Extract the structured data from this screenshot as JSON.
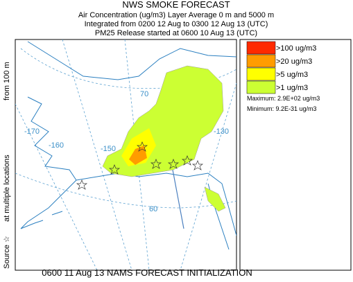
{
  "header": {
    "title": "NWS SMOKE FORECAST",
    "lines": [
      "Air Concentration (ug/m3) Layer Average    0 m and  5000 m",
      "Integrated from 0200 12 Aug to 0300 12 Aug 13 (UTC)",
      "PM25 Release started at 0600 10 Aug 13 (UTC)"
    ]
  },
  "side_label": {
    "source": "Source ☆",
    "locations": "at multiple locations",
    "height": "from   100 m"
  },
  "legend": {
    "items": [
      {
        "label": ">100 ug/m3",
        "color": "#ff2a00"
      },
      {
        "label": ">20 ug/m3",
        "color": "#ff9c00"
      },
      {
        "label": ">5 ug/m3",
        "color": "#ffff00"
      },
      {
        "label": ">1 ug/m3",
        "color": "#ccff33"
      }
    ],
    "maximum": "Maximum: 2.9E+02 ug/m3",
    "minimum": "Minimum: 9.2E-31 ug/m3"
  },
  "map": {
    "grid_labels": [
      "70",
      "-170",
      "-160",
      "-150",
      "-130",
      "60"
    ]
  },
  "footer": "0600 11 Aug 13 NAMS FORECAST INITIALIZATION"
}
